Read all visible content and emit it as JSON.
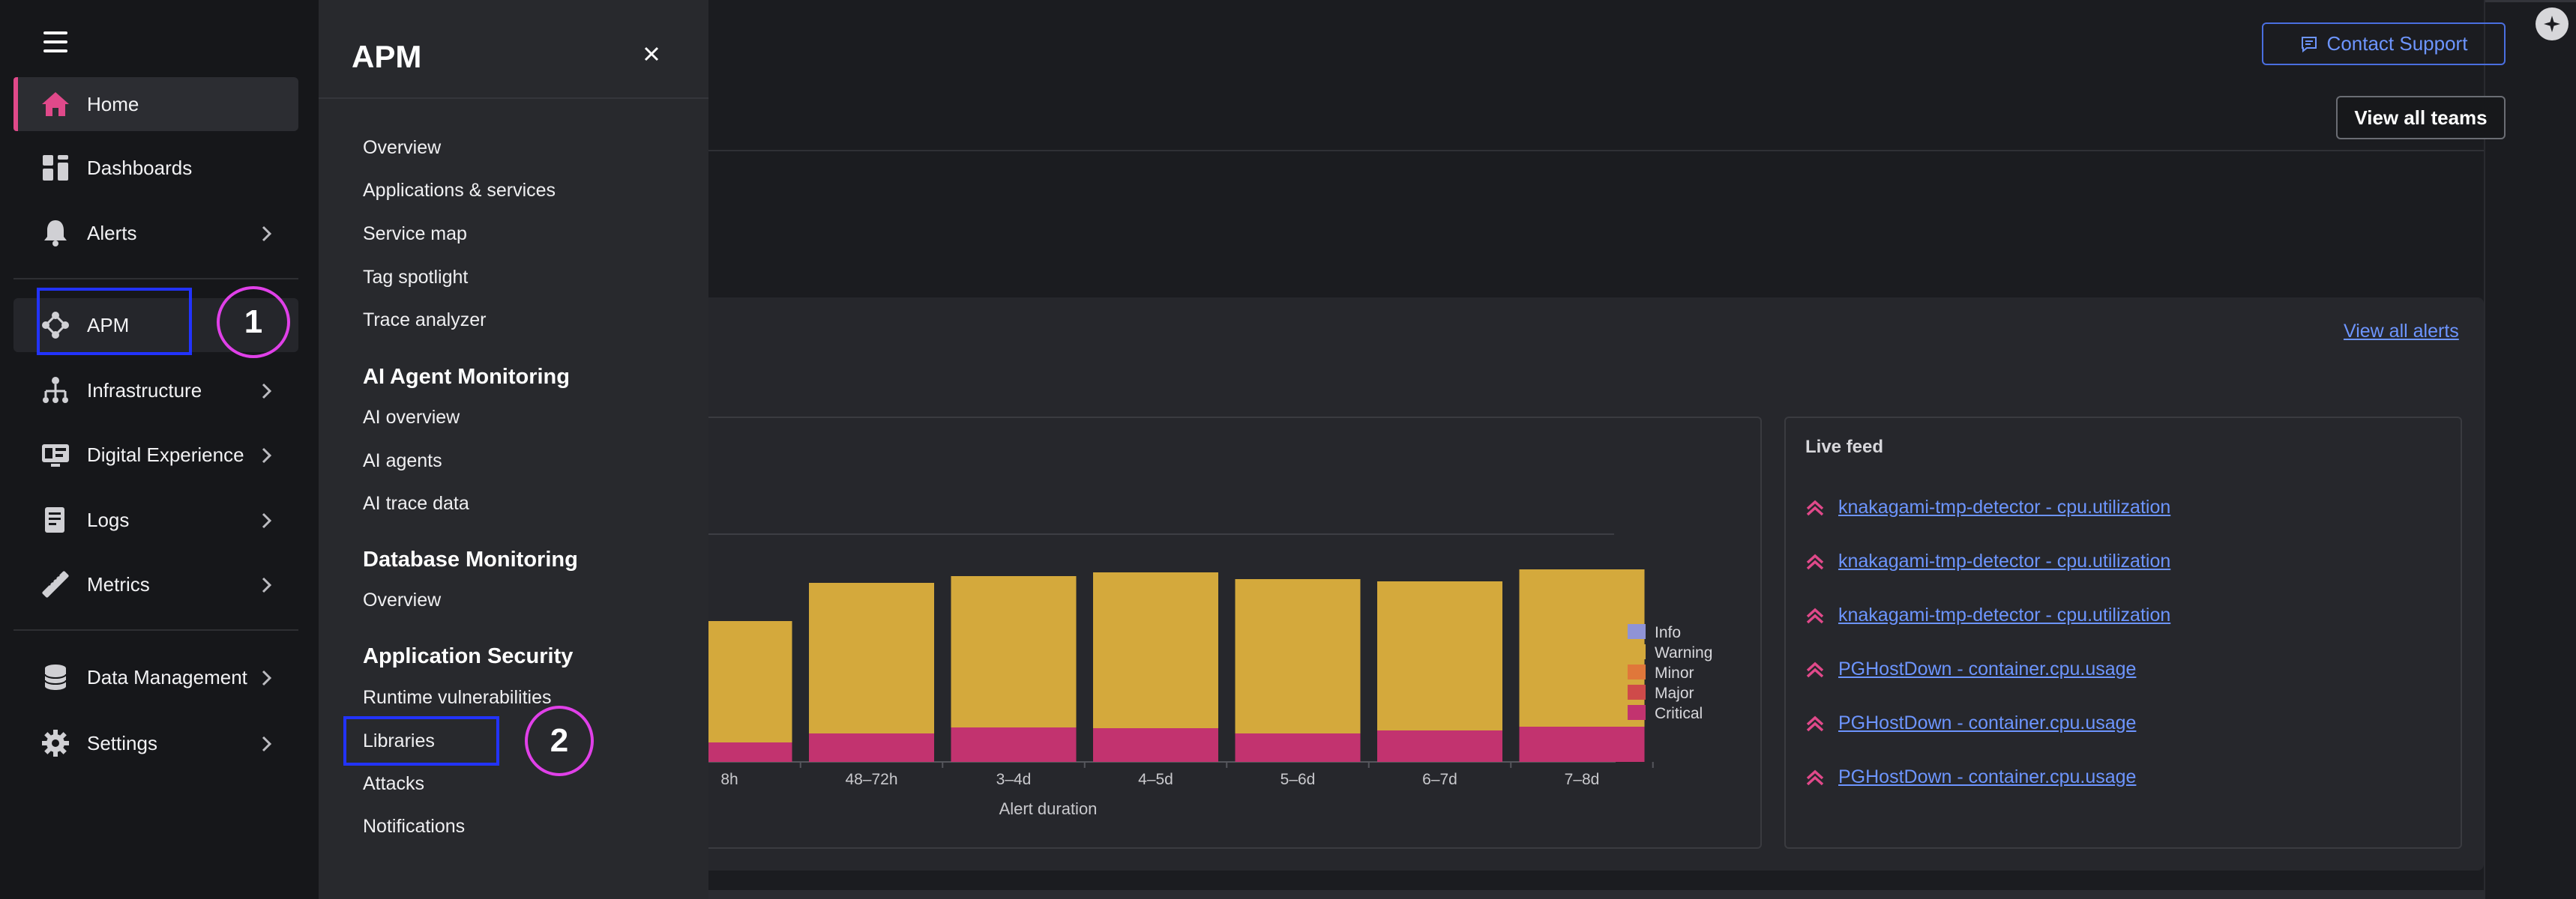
{
  "nav": {
    "items": [
      {
        "label": "Home",
        "icon": "home-icon"
      },
      {
        "label": "Dashboards",
        "icon": "dashboards-icon"
      },
      {
        "label": "Alerts",
        "icon": "bell-icon"
      },
      {
        "label": "APM",
        "icon": "apm-icon"
      },
      {
        "label": "Infrastructure",
        "icon": "infrastructure-icon"
      },
      {
        "label": "Digital Experience",
        "icon": "digital-experience-icon"
      },
      {
        "label": "Logs",
        "icon": "logs-icon"
      },
      {
        "label": "Metrics",
        "icon": "metrics-icon"
      },
      {
        "label": "Data Management",
        "icon": "database-icon"
      },
      {
        "label": "Settings",
        "icon": "gear-icon"
      }
    ],
    "callout_1": "1",
    "callout_2": "2",
    "accent_color": "#e0498a"
  },
  "flyout": {
    "title": "APM",
    "links_top": [
      "Overview",
      "Applications & services",
      "Service map",
      "Tag spotlight",
      "Trace analyzer"
    ],
    "sections": [
      {
        "title": "AI Agent Monitoring",
        "links": [
          "AI overview",
          "AI agents",
          "AI trace data"
        ]
      },
      {
        "title": "Database Monitoring",
        "links": [
          "Overview"
        ]
      },
      {
        "title": "Application Security",
        "links": [
          "Runtime vulnerabilities",
          "Libraries",
          "Attacks",
          "Notifications"
        ]
      }
    ]
  },
  "header": {
    "contact_support": "Contact Support",
    "view_all_teams": "View all teams"
  },
  "alerts": {
    "view_all": "View all alerts"
  },
  "chart_data": {
    "type": "bar",
    "stacked": true,
    "xlabel": "Alert duration",
    "categories": [
      "8h",
      "48–72h",
      "3–4d",
      "4–5d",
      "5–6d",
      "6–7d",
      "7–8d"
    ],
    "legend": [
      "Info",
      "Warning",
      "Minor",
      "Major",
      "Critical"
    ],
    "legend_position": "right",
    "series": [
      {
        "name": "Info",
        "color": "#8f93d6",
        "values": [
          0,
          0,
          0,
          0,
          0,
          0,
          0
        ]
      },
      {
        "name": "Warning",
        "color": "#d4a93c",
        "values": [
          162,
          201,
          202,
          208,
          206,
          199,
          210
        ]
      },
      {
        "name": "Minor",
        "color": "#e0773a",
        "values": [
          0,
          0,
          0,
          0,
          0,
          0,
          0
        ]
      },
      {
        "name": "Major",
        "color": "#cf4a4a",
        "values": [
          0,
          0,
          0,
          0,
          0,
          0,
          0
        ]
      },
      {
        "name": "Critical",
        "color": "#c2336f",
        "values": [
          26,
          38,
          46,
          45,
          38,
          42,
          47
        ]
      }
    ],
    "ylim": [
      0,
      310
    ]
  },
  "live_feed": {
    "title": "Live feed",
    "items": [
      "knakagami-tmp-detector - cpu.utilization",
      "knakagami-tmp-detector - cpu.utilization",
      "knakagami-tmp-detector - cpu.utilization",
      "PGHostDown - container.cpu.usage",
      "PGHostDown - container.cpu.usage",
      "PGHostDown - container.cpu.usage"
    ]
  }
}
